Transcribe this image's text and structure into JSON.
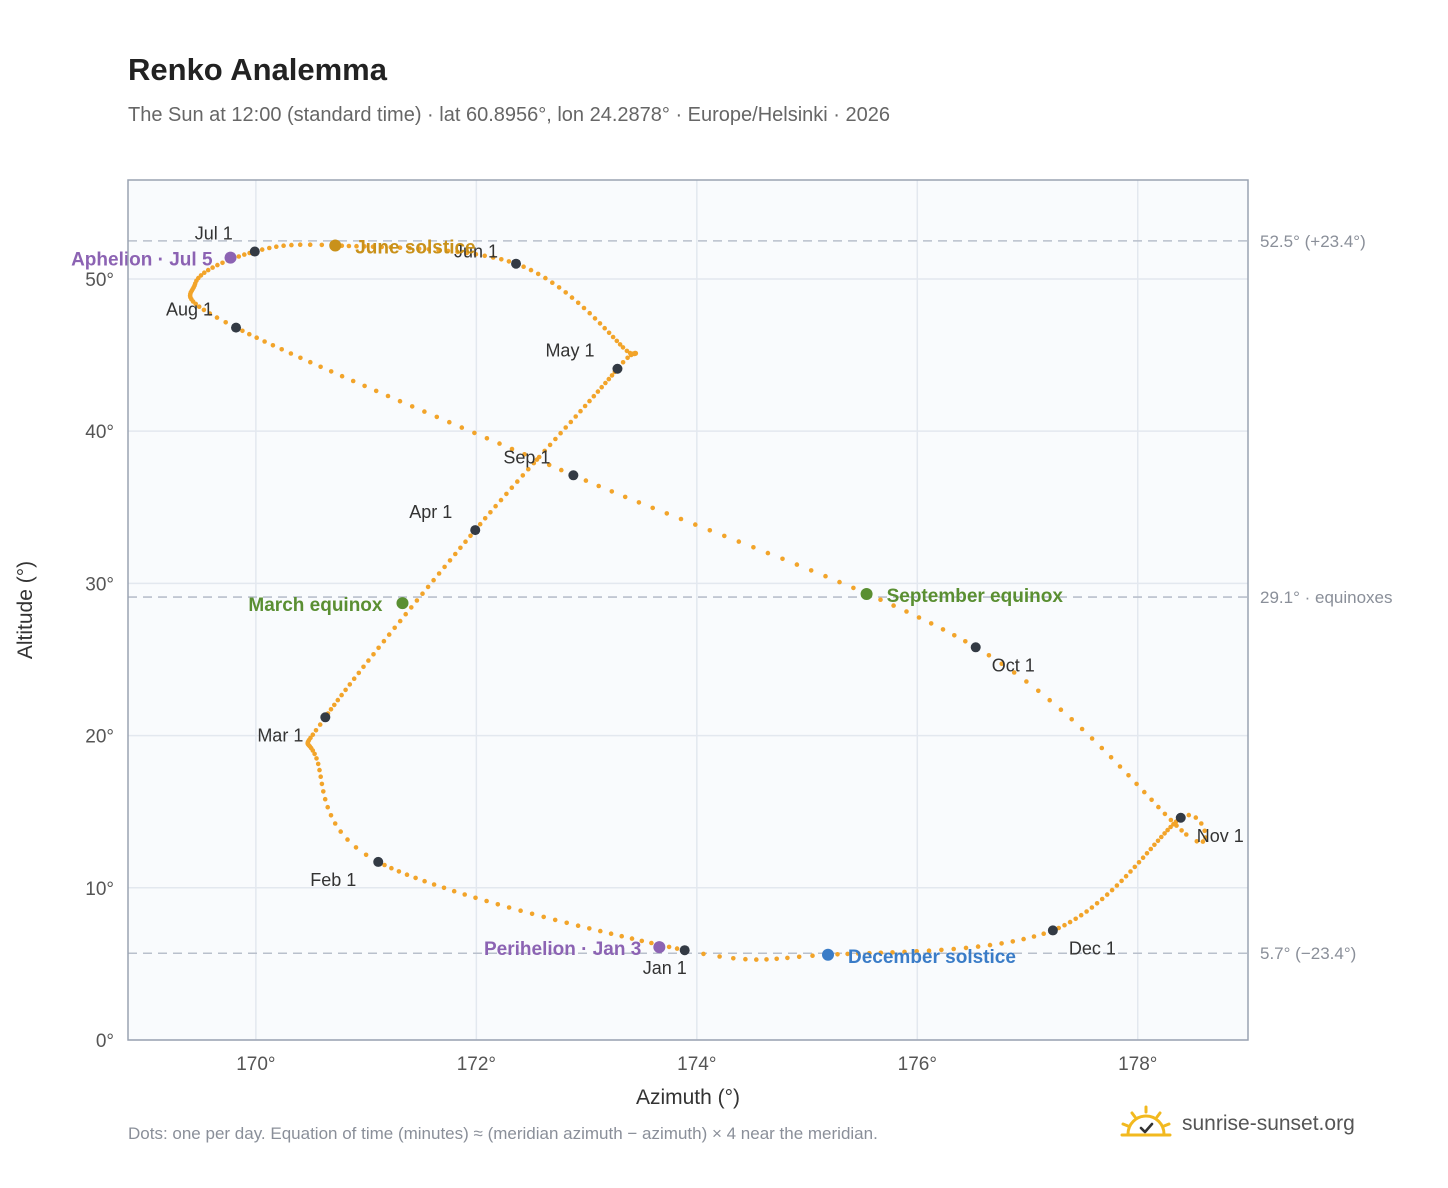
{
  "header": {
    "title": "Renko Analemma",
    "subtitle": "The Sun at 12:00 (standard time) · lat 60.8956°, lon 24.2878° · Europe/Helsinki · 2026"
  },
  "footer": {
    "note": "Dots: one per day. Equation of time (minutes) ≈ (meridian azimuth − azimuth) × 4 near the meridian.",
    "brand": "sunrise-sunset.org"
  },
  "colors": {
    "path": "#f2a42a",
    "month": "#333a44",
    "solstice_june": "#c9911a",
    "solstice_dec": "#3a7cc7",
    "equinox": "#5a8f32",
    "apsis": "#8c63b3",
    "refline": "#b9c0cc",
    "plot_bg": "#f9fbfd",
    "grid": "#e3e8ef"
  },
  "chart_data": {
    "type": "scatter",
    "xlabel": "Azimuth (°)",
    "ylabel": "Altitude (°)",
    "xlim": [
      168.84,
      179.0
    ],
    "ylim": [
      0,
      56.5
    ],
    "xticks": [
      170,
      172,
      174,
      176,
      178
    ],
    "xtick_labels": [
      "170°",
      "172°",
      "174°",
      "176°",
      "178°"
    ],
    "yticks": [
      0,
      10,
      20,
      30,
      40,
      50
    ],
    "ytick_labels": [
      "0°",
      "10°",
      "20°",
      "30°",
      "40°",
      "50°"
    ],
    "grid": true,
    "months": [
      {
        "label": "Jan 1",
        "az": 173.89,
        "alt": 5.9
      },
      {
        "label": "Feb 1",
        "az": 171.11,
        "alt": 11.7
      },
      {
        "label": "Mar 1",
        "az": 170.63,
        "alt": 21.2
      },
      {
        "label": "Apr 1",
        "az": 171.99,
        "alt": 33.5
      },
      {
        "label": "May 1",
        "az": 173.28,
        "alt": 44.1
      },
      {
        "label": "Jun 1",
        "az": 172.36,
        "alt": 51.0
      },
      {
        "label": "Jul 1",
        "az": 169.99,
        "alt": 51.8
      },
      {
        "label": "Aug 1",
        "az": 169.82,
        "alt": 46.8
      },
      {
        "label": "Sep 1",
        "az": 172.88,
        "alt": 37.1
      },
      {
        "label": "Oct 1",
        "az": 176.53,
        "alt": 25.8
      },
      {
        "label": "Nov 1",
        "az": 178.39,
        "alt": 14.6
      },
      {
        "label": "Dec 1",
        "az": 177.23,
        "alt": 7.2
      }
    ],
    "events": [
      {
        "label": "June solstice",
        "az": 170.72,
        "alt": 52.2,
        "kind": "solstice_june"
      },
      {
        "label": "December solstice",
        "az": 175.19,
        "alt": 5.6,
        "kind": "solstice_dec"
      },
      {
        "label": "March equinox",
        "az": 171.33,
        "alt": 28.7,
        "kind": "equinox"
      },
      {
        "label": "September equinox",
        "az": 175.54,
        "alt": 29.3,
        "kind": "equinox"
      },
      {
        "label": "Aphelion · Jul 5",
        "az": 169.77,
        "alt": 51.4,
        "kind": "apsis"
      },
      {
        "label": "Perihelion · Jan 3",
        "az": 173.66,
        "alt": 6.1,
        "kind": "apsis"
      }
    ],
    "reference_lines": [
      {
        "alt": 52.5,
        "label": "52.5° (+23.4°)"
      },
      {
        "alt": 29.1,
        "label": "29.1° · equinoxes"
      },
      {
        "alt": 5.7,
        "label": "5.7° (−23.4°)"
      }
    ],
    "extreme_points": [
      {
        "az": 169.45,
        "alt": 49.7
      },
      {
        "az": 173.33,
        "alt": 45.5
      },
      {
        "az": 170.55,
        "alt": 18.5
      },
      {
        "az": 178.44,
        "alt": 13.5
      }
    ]
  }
}
